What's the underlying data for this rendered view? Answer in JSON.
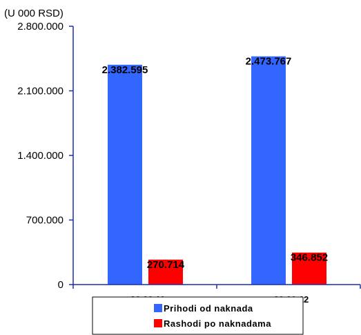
{
  "unit_label": "(U 000 RSD)",
  "chart_data": {
    "type": "bar",
    "categories": [
      "30.09.11",
      "30.09.12"
    ],
    "series": [
      {
        "name": "Prihodi od naknada",
        "values": [
          2382595,
          2473767
        ],
        "labels": [
          "2.382.595",
          "2.473.767"
        ],
        "color": "#3366ff"
      },
      {
        "name": "Rashodi po naknadama",
        "values": [
          270714,
          346852
        ],
        "labels": [
          "270.714",
          "346.852"
        ],
        "color": "#ff0000"
      }
    ],
    "ylim": [
      0,
      2800000
    ],
    "yticks": [
      0,
      700000,
      1400000,
      2100000,
      2800000
    ],
    "ytick_labels": [
      "0",
      "700.000",
      "1.400.000",
      "2.100.000",
      "2.800.000"
    ],
    "grid": false,
    "legend_position": "bottom-center"
  }
}
